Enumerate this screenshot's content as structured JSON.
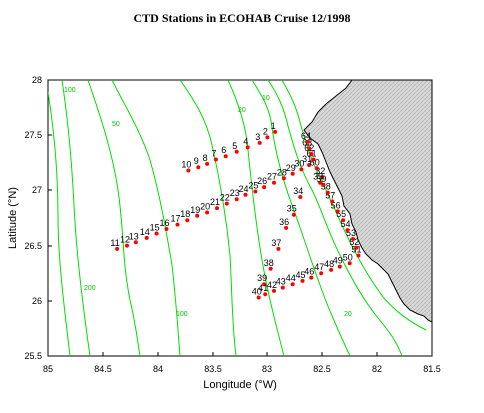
{
  "title": "CTD Stations in ECOHAB Cruise 12/1998",
  "xlabel": "Longitude (°W)",
  "ylabel": "Latitude (°N)",
  "xticks": [
    "85",
    "84.5",
    "84",
    "83.5",
    "83",
    "82.5",
    "82",
    "81.5"
  ],
  "yticks": [
    "28",
    "27.5",
    "27",
    "26.5",
    "26",
    "25.5"
  ],
  "contour_labels": [
    "100",
    "200",
    "50",
    "20",
    "10",
    "100",
    "20"
  ],
  "colors": {
    "contour": "#00e000",
    "station": "#ff0000",
    "land": "#d8d8d8"
  },
  "chart_data": {
    "type": "scatter",
    "title": "CTD Stations in ECOHAB Cruise 12/1998",
    "xlabel": "Longitude (°W)",
    "ylabel": "Latitude (°N)",
    "xlim": [
      85,
      81.5
    ],
    "ylim": [
      25.5,
      28
    ],
    "stations": [
      {
        "id": "1",
        "lon": 82.93,
        "lat": 27.53
      },
      {
        "id": "2",
        "lon": 83.0,
        "lat": 27.48
      },
      {
        "id": "3",
        "lon": 83.07,
        "lat": 27.43
      },
      {
        "id": "4",
        "lon": 83.18,
        "lat": 27.39
      },
      {
        "id": "5",
        "lon": 83.28,
        "lat": 27.35
      },
      {
        "id": "6",
        "lon": 83.38,
        "lat": 27.31
      },
      {
        "id": "7",
        "lon": 83.47,
        "lat": 27.28
      },
      {
        "id": "8",
        "lon": 83.55,
        "lat": 27.24
      },
      {
        "id": "9",
        "lon": 83.63,
        "lat": 27.21
      },
      {
        "id": "10",
        "lon": 83.72,
        "lat": 27.18
      },
      {
        "id": "11",
        "lon": 84.37,
        "lat": 26.47
      },
      {
        "id": "12",
        "lon": 84.28,
        "lat": 26.5
      },
      {
        "id": "13",
        "lon": 84.2,
        "lat": 26.53
      },
      {
        "id": "14",
        "lon": 84.1,
        "lat": 26.57
      },
      {
        "id": "15",
        "lon": 84.01,
        "lat": 26.61
      },
      {
        "id": "16",
        "lon": 83.92,
        "lat": 26.65
      },
      {
        "id": "17",
        "lon": 83.82,
        "lat": 26.69
      },
      {
        "id": "18",
        "lon": 83.73,
        "lat": 26.73
      },
      {
        "id": "19",
        "lon": 83.64,
        "lat": 26.77
      },
      {
        "id": "20",
        "lon": 83.55,
        "lat": 26.8
      },
      {
        "id": "21",
        "lon": 83.46,
        "lat": 26.84
      },
      {
        "id": "22",
        "lon": 83.37,
        "lat": 26.88
      },
      {
        "id": "23",
        "lon": 83.28,
        "lat": 26.92
      },
      {
        "id": "24",
        "lon": 83.2,
        "lat": 26.96
      },
      {
        "id": "25",
        "lon": 83.11,
        "lat": 26.99
      },
      {
        "id": "26",
        "lon": 83.03,
        "lat": 27.03
      },
      {
        "id": "27",
        "lon": 82.94,
        "lat": 27.07
      },
      {
        "id": "28",
        "lon": 82.85,
        "lat": 27.11
      },
      {
        "id": "29",
        "lon": 82.77,
        "lat": 27.15
      },
      {
        "id": "30",
        "lon": 82.69,
        "lat": 27.19
      },
      {
        "id": "31",
        "lon": 82.62,
        "lat": 27.23
      },
      {
        "id": "32",
        "lon": 82.5,
        "lat": 27.12
      },
      {
        "id": "33",
        "lon": 82.52,
        "lat": 27.07
      },
      {
        "id": "34",
        "lon": 82.7,
        "lat": 26.94
      },
      {
        "id": "35",
        "lon": 82.76,
        "lat": 26.78
      },
      {
        "id": "36",
        "lon": 82.83,
        "lat": 26.66
      },
      {
        "id": "37",
        "lon": 82.9,
        "lat": 26.47
      },
      {
        "id": "38",
        "lon": 82.97,
        "lat": 26.29
      },
      {
        "id": "39",
        "lon": 83.03,
        "lat": 26.15
      },
      {
        "id": "40",
        "lon": 83.08,
        "lat": 26.03
      },
      {
        "id": "41",
        "lon": 83.02,
        "lat": 26.06
      },
      {
        "id": "42",
        "lon": 82.94,
        "lat": 26.09
      },
      {
        "id": "43",
        "lon": 82.86,
        "lat": 26.12
      },
      {
        "id": "44",
        "lon": 82.77,
        "lat": 26.15
      },
      {
        "id": "45",
        "lon": 82.68,
        "lat": 26.18
      },
      {
        "id": "46",
        "lon": 82.6,
        "lat": 26.21
      },
      {
        "id": "47",
        "lon": 82.51,
        "lat": 26.25
      },
      {
        "id": "48",
        "lon": 82.42,
        "lat": 26.28
      },
      {
        "id": "49",
        "lon": 82.34,
        "lat": 26.31
      },
      {
        "id": "50",
        "lon": 82.25,
        "lat": 26.34
      },
      {
        "id": "51",
        "lon": 82.17,
        "lat": 26.41
      },
      {
        "id": "52",
        "lon": 82.19,
        "lat": 26.48
      },
      {
        "id": "53",
        "lon": 82.22,
        "lat": 26.56
      },
      {
        "id": "54",
        "lon": 82.27,
        "lat": 26.64
      },
      {
        "id": "55",
        "lon": 82.31,
        "lat": 26.73
      },
      {
        "id": "56",
        "lon": 82.36,
        "lat": 26.81
      },
      {
        "id": "57",
        "lon": 82.41,
        "lat": 26.9
      },
      {
        "id": "58",
        "lon": 82.45,
        "lat": 26.98
      },
      {
        "id": "59",
        "lon": 82.49,
        "lat": 27.05
      },
      {
        "id": "60",
        "lon": 82.55,
        "lat": 27.2
      },
      {
        "id": "61",
        "lon": 82.58,
        "lat": 27.28
      },
      {
        "id": "62",
        "lon": 82.6,
        "lat": 27.33
      },
      {
        "id": "63",
        "lon": 82.62,
        "lat": 27.38
      },
      {
        "id": "64",
        "lon": 82.63,
        "lat": 27.44
      }
    ]
  }
}
